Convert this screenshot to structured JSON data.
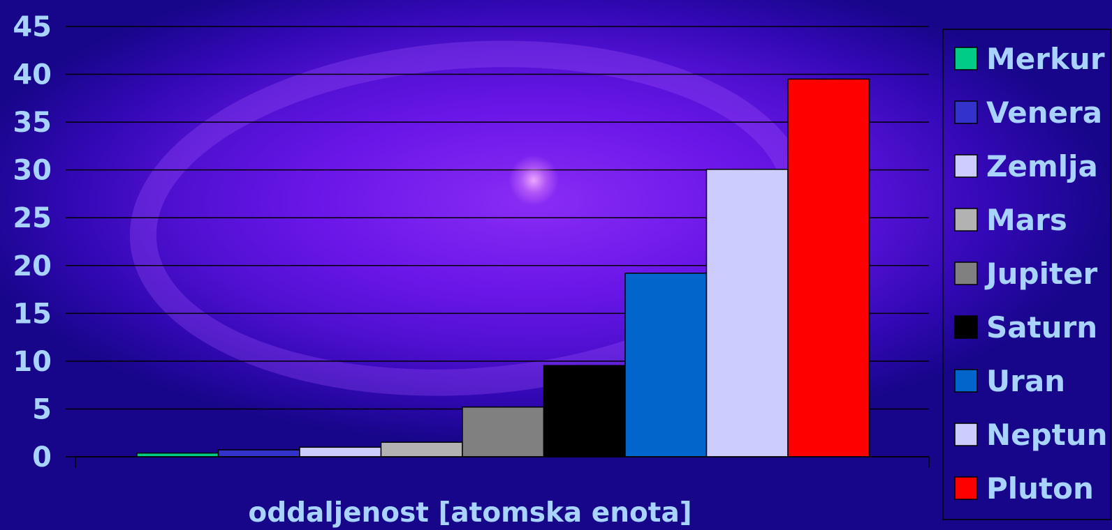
{
  "chart_data": {
    "type": "bar",
    "xlabel": "oddaljenost [atomska enota]",
    "ylabel": "",
    "ylim": [
      0,
      45
    ],
    "yticks": [
      "0",
      "5",
      "10",
      "15",
      "20",
      "25",
      "30",
      "35",
      "40",
      "45"
    ],
    "grid": true,
    "legend_position": "right",
    "series": [
      {
        "name": "Merkur",
        "value": 0.39,
        "color": "#00cc88"
      },
      {
        "name": "Venera",
        "value": 0.72,
        "color": "#3333cc"
      },
      {
        "name": "Zemlja",
        "value": 1.0,
        "color": "#ccccff"
      },
      {
        "name": "Mars",
        "value": 1.52,
        "color": "#b2b2b2"
      },
      {
        "name": "Jupiter",
        "value": 5.2,
        "color": "#808080"
      },
      {
        "name": "Saturn",
        "value": 9.54,
        "color": "#000000"
      },
      {
        "name": "Uran",
        "value": 19.2,
        "color": "#0066cc"
      },
      {
        "name": "Neptun",
        "value": 30.06,
        "color": "#ccccff"
      },
      {
        "name": "Pluton",
        "value": 39.5,
        "color": "#ff0000"
      }
    ]
  }
}
